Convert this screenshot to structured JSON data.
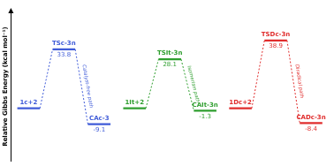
{
  "chart_data": {
    "type": "energy_profile",
    "y_label": "Relative Gibbs Energy (kcal mol⁻¹)",
    "ylim": [
      -30,
      55
    ],
    "tick_labels": false,
    "grid": false,
    "series": [
      {
        "name": "Catalyst-free path",
        "color": "#3f5bd8",
        "categories": [
          "1c+2",
          "TSc-3n",
          "CAc-3"
        ],
        "values": [
          0,
          33.8,
          -9.1
        ],
        "value_labels": [
          null,
          "33.8",
          "-9.1"
        ]
      },
      {
        "name": "Isomerism path",
        "color": "#2e9e2e",
        "categories": [
          "1It+2",
          "TSIt-3n",
          "CAIt-3n"
        ],
        "values": [
          0,
          28.1,
          -1.3
        ],
        "value_labels": [
          null,
          "28.1",
          "-1.3"
        ]
      },
      {
        "name": "Diradical path",
        "color": "#e02c2c",
        "categories": [
          "1Dc+2",
          "TSDc-3n",
          "CADc-3n"
        ],
        "values": [
          0,
          38.9,
          -8.4
        ],
        "value_labels": [
          null,
          "38.9",
          "-8.4"
        ]
      }
    ]
  }
}
